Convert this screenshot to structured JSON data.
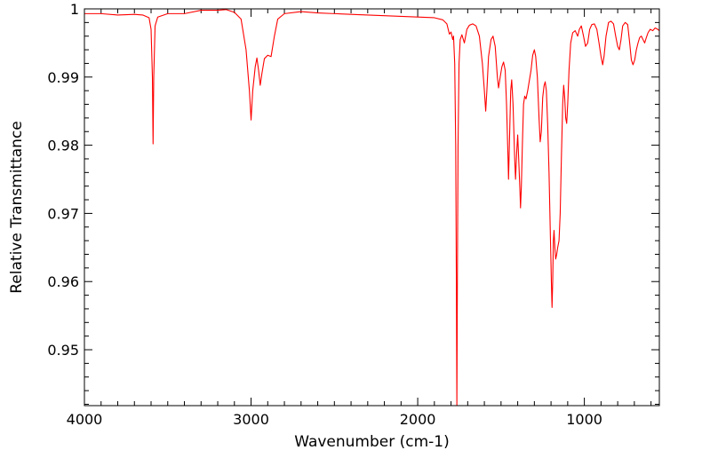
{
  "chart_data": {
    "type": "line",
    "title": "",
    "xlabel": "Wavenumber (cm-1)",
    "ylabel": "Relative Transmittance",
    "xlim": [
      4000,
      550
    ],
    "ylim": [
      0.9418,
      1.0
    ],
    "x_reversed": true,
    "x_ticks": [
      {
        "value": 4000,
        "label": "4000"
      },
      {
        "value": 3000,
        "label": "3000"
      },
      {
        "value": 2000,
        "label": "2000"
      },
      {
        "value": 1000,
        "label": "1000"
      }
    ],
    "y_ticks": [
      {
        "value": 1.0,
        "label": "1"
      },
      {
        "value": 0.99,
        "label": "0.99"
      },
      {
        "value": 0.98,
        "label": "0.98"
      },
      {
        "value": 0.97,
        "label": "0.97"
      },
      {
        "value": 0.96,
        "label": "0.96"
      },
      {
        "value": 0.95,
        "label": "0.95"
      }
    ],
    "grid": false,
    "series": [
      {
        "color": "#ff0000",
        "points": [
          [
            4000,
            0.9993
          ],
          [
            3900,
            0.9993
          ],
          [
            3800,
            0.9991
          ],
          [
            3700,
            0.9992
          ],
          [
            3650,
            0.9991
          ],
          [
            3612,
            0.9987
          ],
          [
            3600,
            0.997
          ],
          [
            3592,
            0.99
          ],
          [
            3588,
            0.9802
          ],
          [
            3584,
            0.99
          ],
          [
            3576,
            0.9975
          ],
          [
            3560,
            0.9988
          ],
          [
            3500,
            0.9993
          ],
          [
            3400,
            0.9993
          ],
          [
            3300,
            0.9998
          ],
          [
            3200,
            0.9998
          ],
          [
            3150,
            0.9999
          ],
          [
            3100,
            0.9995
          ],
          [
            3060,
            0.9985
          ],
          [
            3030,
            0.994
          ],
          [
            3010,
            0.988
          ],
          [
            3000,
            0.9837
          ],
          [
            2990,
            0.988
          ],
          [
            2975,
            0.9915
          ],
          [
            2965,
            0.9928
          ],
          [
            2955,
            0.991
          ],
          [
            2945,
            0.9888
          ],
          [
            2935,
            0.9905
          ],
          [
            2920,
            0.9927
          ],
          [
            2900,
            0.9932
          ],
          [
            2880,
            0.993
          ],
          [
            2860,
            0.996
          ],
          [
            2840,
            0.9985
          ],
          [
            2800,
            0.9993
          ],
          [
            2700,
            0.9996
          ],
          [
            2600,
            0.9994
          ],
          [
            2500,
            0.9993
          ],
          [
            2400,
            0.9992
          ],
          [
            2300,
            0.9991
          ],
          [
            2200,
            0.999
          ],
          [
            2100,
            0.9989
          ],
          [
            2000,
            0.9988
          ],
          [
            1900,
            0.9987
          ],
          [
            1850,
            0.9984
          ],
          [
            1825,
            0.9978
          ],
          [
            1810,
            0.9963
          ],
          [
            1800,
            0.9966
          ],
          [
            1790,
            0.9955
          ],
          [
            1785,
            0.996
          ],
          [
            1778,
            0.992
          ],
          [
            1772,
            0.98
          ],
          [
            1768,
            0.96
          ],
          [
            1765,
            0.9418
          ],
          [
            1762,
            0.96
          ],
          [
            1758,
            0.98
          ],
          [
            1752,
            0.992
          ],
          [
            1745,
            0.9955
          ],
          [
            1735,
            0.9962
          ],
          [
            1720,
            0.995
          ],
          [
            1705,
            0.997
          ],
          [
            1690,
            0.9976
          ],
          [
            1670,
            0.9978
          ],
          [
            1650,
            0.9975
          ],
          [
            1630,
            0.996
          ],
          [
            1612,
            0.992
          ],
          [
            1600,
            0.988
          ],
          [
            1592,
            0.985
          ],
          [
            1585,
            0.988
          ],
          [
            1575,
            0.993
          ],
          [
            1560,
            0.9955
          ],
          [
            1548,
            0.996
          ],
          [
            1535,
            0.9945
          ],
          [
            1522,
            0.99
          ],
          [
            1515,
            0.9884
          ],
          [
            1505,
            0.99
          ],
          [
            1495,
            0.9915
          ],
          [
            1485,
            0.9922
          ],
          [
            1475,
            0.991
          ],
          [
            1467,
            0.986
          ],
          [
            1458,
            0.978
          ],
          [
            1455,
            0.975
          ],
          [
            1450,
            0.98
          ],
          [
            1442,
            0.988
          ],
          [
            1436,
            0.9896
          ],
          [
            1428,
            0.986
          ],
          [
            1418,
            0.978
          ],
          [
            1413,
            0.975
          ],
          [
            1406,
            0.979
          ],
          [
            1400,
            0.9815
          ],
          [
            1394,
            0.978
          ],
          [
            1386,
            0.973
          ],
          [
            1383,
            0.9708
          ],
          [
            1378,
            0.974
          ],
          [
            1372,
            0.98
          ],
          [
            1365,
            0.986
          ],
          [
            1358,
            0.9872
          ],
          [
            1350,
            0.9868
          ],
          [
            1340,
            0.988
          ],
          [
            1330,
            0.9895
          ],
          [
            1320,
            0.991
          ],
          [
            1310,
            0.9932
          ],
          [
            1300,
            0.994
          ],
          [
            1292,
            0.993
          ],
          [
            1282,
            0.99
          ],
          [
            1272,
            0.984
          ],
          [
            1265,
            0.9805
          ],
          [
            1258,
            0.982
          ],
          [
            1250,
            0.987
          ],
          [
            1242,
            0.9887
          ],
          [
            1235,
            0.9893
          ],
          [
            1228,
            0.988
          ],
          [
            1220,
            0.983
          ],
          [
            1212,
            0.976
          ],
          [
            1205,
            0.968
          ],
          [
            1198,
            0.96
          ],
          [
            1194,
            0.9562
          ],
          [
            1190,
            0.96
          ],
          [
            1186,
            0.966
          ],
          [
            1182,
            0.9675
          ],
          [
            1177,
            0.965
          ],
          [
            1172,
            0.9633
          ],
          [
            1166,
            0.964
          ],
          [
            1160,
            0.965
          ],
          [
            1152,
            0.966
          ],
          [
            1145,
            0.97
          ],
          [
            1138,
            0.978
          ],
          [
            1130,
            0.986
          ],
          [
            1124,
            0.9888
          ],
          [
            1118,
            0.987
          ],
          [
            1112,
            0.984
          ],
          [
            1106,
            0.9832
          ],
          [
            1100,
            0.986
          ],
          [
            1092,
            0.991
          ],
          [
            1082,
            0.995
          ],
          [
            1070,
            0.9965
          ],
          [
            1055,
            0.9968
          ],
          [
            1040,
            0.996
          ],
          [
            1030,
            0.997
          ],
          [
            1018,
            0.9975
          ],
          [
            1005,
            0.996
          ],
          [
            993,
            0.9945
          ],
          [
            980,
            0.995
          ],
          [
            968,
            0.997
          ],
          [
            955,
            0.9977
          ],
          [
            940,
            0.9978
          ],
          [
            925,
            0.997
          ],
          [
            912,
            0.995
          ],
          [
            900,
            0.993
          ],
          [
            890,
            0.9918
          ],
          [
            882,
            0.993
          ],
          [
            870,
            0.996
          ],
          [
            855,
            0.998
          ],
          [
            840,
            0.9982
          ],
          [
            825,
            0.9978
          ],
          [
            812,
            0.996
          ],
          [
            800,
            0.9945
          ],
          [
            790,
            0.994
          ],
          [
            780,
            0.9955
          ],
          [
            770,
            0.9975
          ],
          [
            755,
            0.998
          ],
          [
            740,
            0.9977
          ],
          [
            728,
            0.995
          ],
          [
            718,
            0.9925
          ],
          [
            708,
            0.9918
          ],
          [
            698,
            0.9925
          ],
          [
            688,
            0.994
          ],
          [
            678,
            0.995
          ],
          [
            668,
            0.9958
          ],
          [
            658,
            0.996
          ],
          [
            648,
            0.9955
          ],
          [
            638,
            0.995
          ],
          [
            628,
            0.9958
          ],
          [
            618,
            0.9965
          ],
          [
            605,
            0.997
          ],
          [
            590,
            0.9968
          ],
          [
            575,
            0.9972
          ],
          [
            560,
            0.997
          ],
          [
            550,
            0.9968
          ]
        ]
      }
    ]
  }
}
